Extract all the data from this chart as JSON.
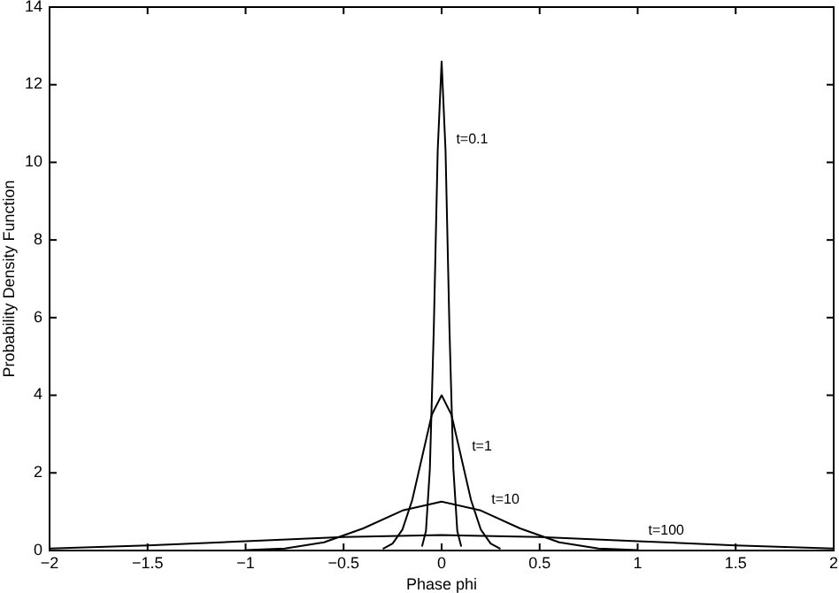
{
  "chart_data": {
    "type": "line",
    "xlabel": "Phase phi",
    "ylabel": "Probability Density Function",
    "xlim": [
      -2,
      2
    ],
    "ylim": [
      0,
      14
    ],
    "xticks": [
      -2,
      -1.5,
      -1,
      -0.5,
      0,
      0.5,
      1,
      1.5,
      2
    ],
    "yticks": [
      0,
      2,
      4,
      6,
      8,
      10,
      12,
      14
    ],
    "grid": false,
    "line_style": "solid",
    "series": [
      {
        "name": "t=0.1",
        "color": "#000000",
        "x": [
          -0.1,
          -0.08,
          -0.06,
          -0.04,
          -0.02,
          0,
          0.02,
          0.04,
          0.06,
          0.08,
          0.1
        ],
        "values": [
          0.1,
          0.5,
          2.1,
          5.7,
          10.3,
          12.6,
          10.3,
          5.7,
          2.1,
          0.5,
          0.1
        ]
      },
      {
        "name": "t=1",
        "color": "#000000",
        "x": [
          -0.3,
          -0.25,
          -0.2,
          -0.15,
          -0.1,
          -0.05,
          0,
          0.05,
          0.1,
          0.15,
          0.2,
          0.25,
          0.3
        ],
        "values": [
          0.04,
          0.18,
          0.54,
          1.3,
          2.4,
          3.5,
          4,
          3.5,
          2.4,
          1.3,
          0.54,
          0.18,
          0.04
        ]
      },
      {
        "name": "t=10",
        "color": "#000000",
        "x": [
          -1,
          -0.8,
          -0.6,
          -0.4,
          -0.2,
          0,
          0.2,
          0.4,
          0.6,
          0.8,
          1
        ],
        "values": [
          0.01,
          0.05,
          0.21,
          0.57,
          1.03,
          1.26,
          1.03,
          0.57,
          0.21,
          0.05,
          0.01
        ]
      },
      {
        "name": "t=100",
        "color": "#000000",
        "x": [
          -2,
          -1.5,
          -1,
          -0.5,
          0,
          0.5,
          1,
          1.5,
          2
        ],
        "values": [
          0.05,
          0.13,
          0.24,
          0.35,
          0.4,
          0.35,
          0.24,
          0.13,
          0.05
        ]
      }
    ]
  }
}
